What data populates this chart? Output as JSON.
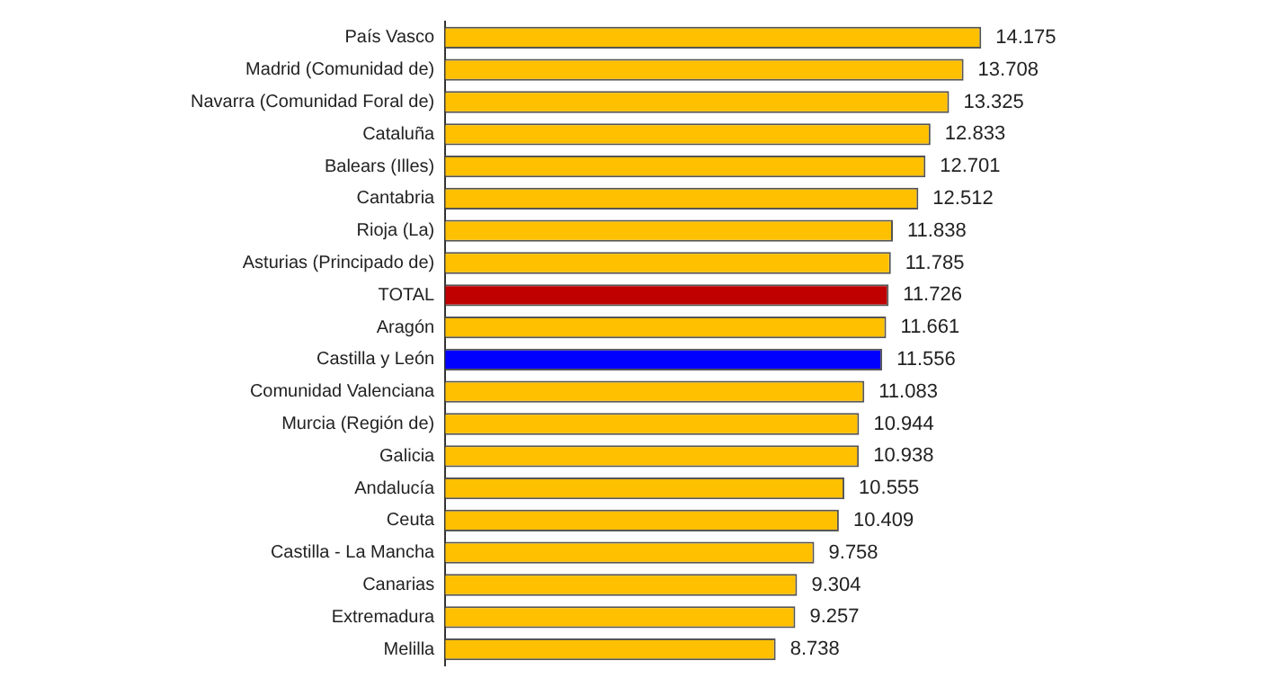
{
  "chart_data": {
    "type": "bar",
    "orientation": "horizontal",
    "categories": [
      "País Vasco",
      "Madrid (Comunidad de)",
      "Navarra (Comunidad Foral de)",
      "Cataluña",
      "Balears (Illes)",
      "Cantabria",
      "Rioja (La)",
      "Asturias (Principado de)",
      "TOTAL",
      "Aragón",
      "Castilla y León",
      "Comunidad Valenciana",
      "Murcia (Región de)",
      "Galicia",
      "Andalucía",
      "Ceuta",
      "Castilla - La Mancha",
      "Canarias",
      "Extremadura",
      "Melilla"
    ],
    "values": [
      14.175,
      13.708,
      13.325,
      12.833,
      12.701,
      12.512,
      11.838,
      11.785,
      11.726,
      11.661,
      11.556,
      11.083,
      10.944,
      10.938,
      10.555,
      10.409,
      9.758,
      9.304,
      9.257,
      8.738
    ],
    "colors": [
      "#ffc000",
      "#ffc000",
      "#ffc000",
      "#ffc000",
      "#ffc000",
      "#ffc000",
      "#ffc000",
      "#ffc000",
      "#c00000",
      "#ffc000",
      "#0000ff",
      "#ffc000",
      "#ffc000",
      "#ffc000",
      "#ffc000",
      "#ffc000",
      "#ffc000",
      "#ffc000",
      "#ffc000",
      "#ffc000"
    ],
    "data_labels": true,
    "tick_labels": "y",
    "grid": false,
    "legend": false
  }
}
